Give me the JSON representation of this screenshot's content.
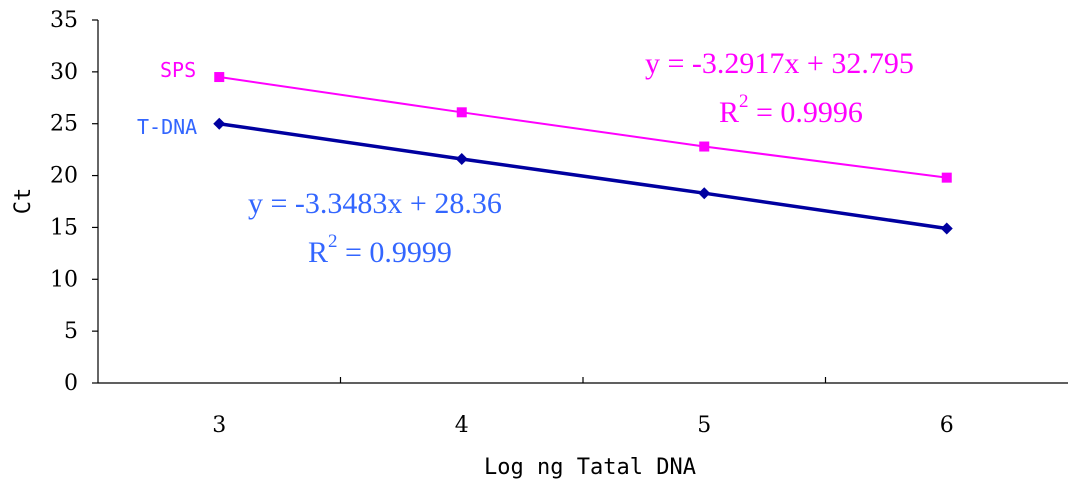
{
  "chart_data": {
    "type": "line",
    "xlabel": "Log ng Tatal DNA",
    "ylabel": "Ct",
    "ylim": [
      0,
      35
    ],
    "yticks": [
      0,
      5,
      10,
      15,
      20,
      25,
      30,
      35
    ],
    "x": [
      3,
      4,
      5,
      6
    ],
    "xticks": [
      "3",
      "4",
      "5",
      "6"
    ],
    "grid": false,
    "series": [
      {
        "name": "SPS",
        "color": "#ff00ff",
        "marker": "square",
        "values": [
          29.5,
          26.1,
          22.8,
          19.8
        ],
        "equation": "y = -3.2917x + 32.795",
        "r2_prefix": "R",
        "r2_exp": "2",
        "r2_value": " = 0.9996"
      },
      {
        "name": "T-DNA",
        "color": "#0000a0",
        "label_color": "#3366ff",
        "marker": "diamond",
        "values": [
          25.0,
          21.6,
          18.3,
          14.9
        ],
        "equation": "y = -3.3483x + 28.36",
        "r2_prefix": "R",
        "r2_exp": "2",
        "r2_value": " = 0.9999"
      }
    ]
  }
}
